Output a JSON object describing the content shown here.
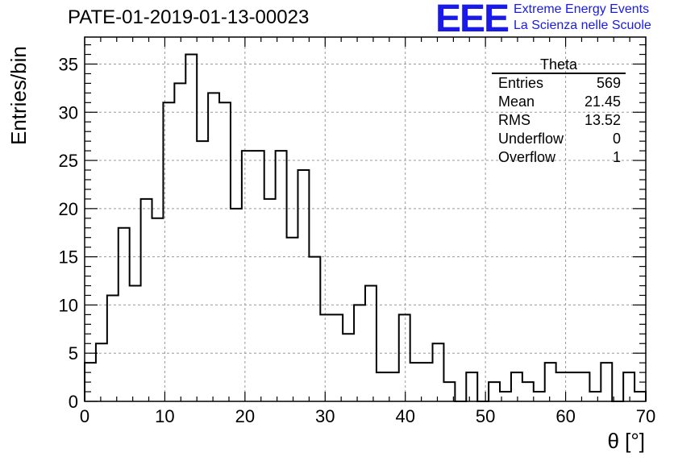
{
  "chart_data": {
    "type": "bar",
    "style": "step-histogram",
    "title": "PATE-01-2019-01-13-00023",
    "xlabel": "θ [°]",
    "ylabel": "Entries/bin",
    "xlim": [
      0,
      70
    ],
    "ylim": [
      0,
      37.8
    ],
    "bin_width": 1.4,
    "x_ticks": [
      0,
      10,
      20,
      30,
      40,
      50,
      60,
      70
    ],
    "y_ticks": [
      0,
      5,
      10,
      15,
      20,
      25,
      30,
      35
    ],
    "grid": true,
    "values": [
      4,
      6,
      11,
      18,
      12,
      21,
      19,
      31,
      33,
      36,
      27,
      32,
      31,
      20,
      26,
      26,
      21,
      26,
      17,
      24,
      15,
      9,
      9,
      7,
      10,
      12,
      3,
      3,
      9,
      4,
      4,
      6,
      2,
      0,
      3,
      0,
      2,
      1,
      3,
      2,
      1,
      4,
      3,
      3,
      3,
      1,
      4,
      0,
      3,
      1
    ]
  },
  "stats_box": {
    "title": "Theta",
    "rows": [
      {
        "label": "Entries",
        "value": "569"
      },
      {
        "label": "Mean",
        "value": "21.45"
      },
      {
        "label": "RMS",
        "value": "13.52"
      },
      {
        "label": "Underflow",
        "value": "0"
      },
      {
        "label": "Overflow",
        "value": "1"
      }
    ]
  },
  "logo": {
    "mark": "EEE",
    "line1": "Extreme Energy Events",
    "line2": "La Scienza nelle Scuole",
    "color": "#1a1ae6"
  }
}
